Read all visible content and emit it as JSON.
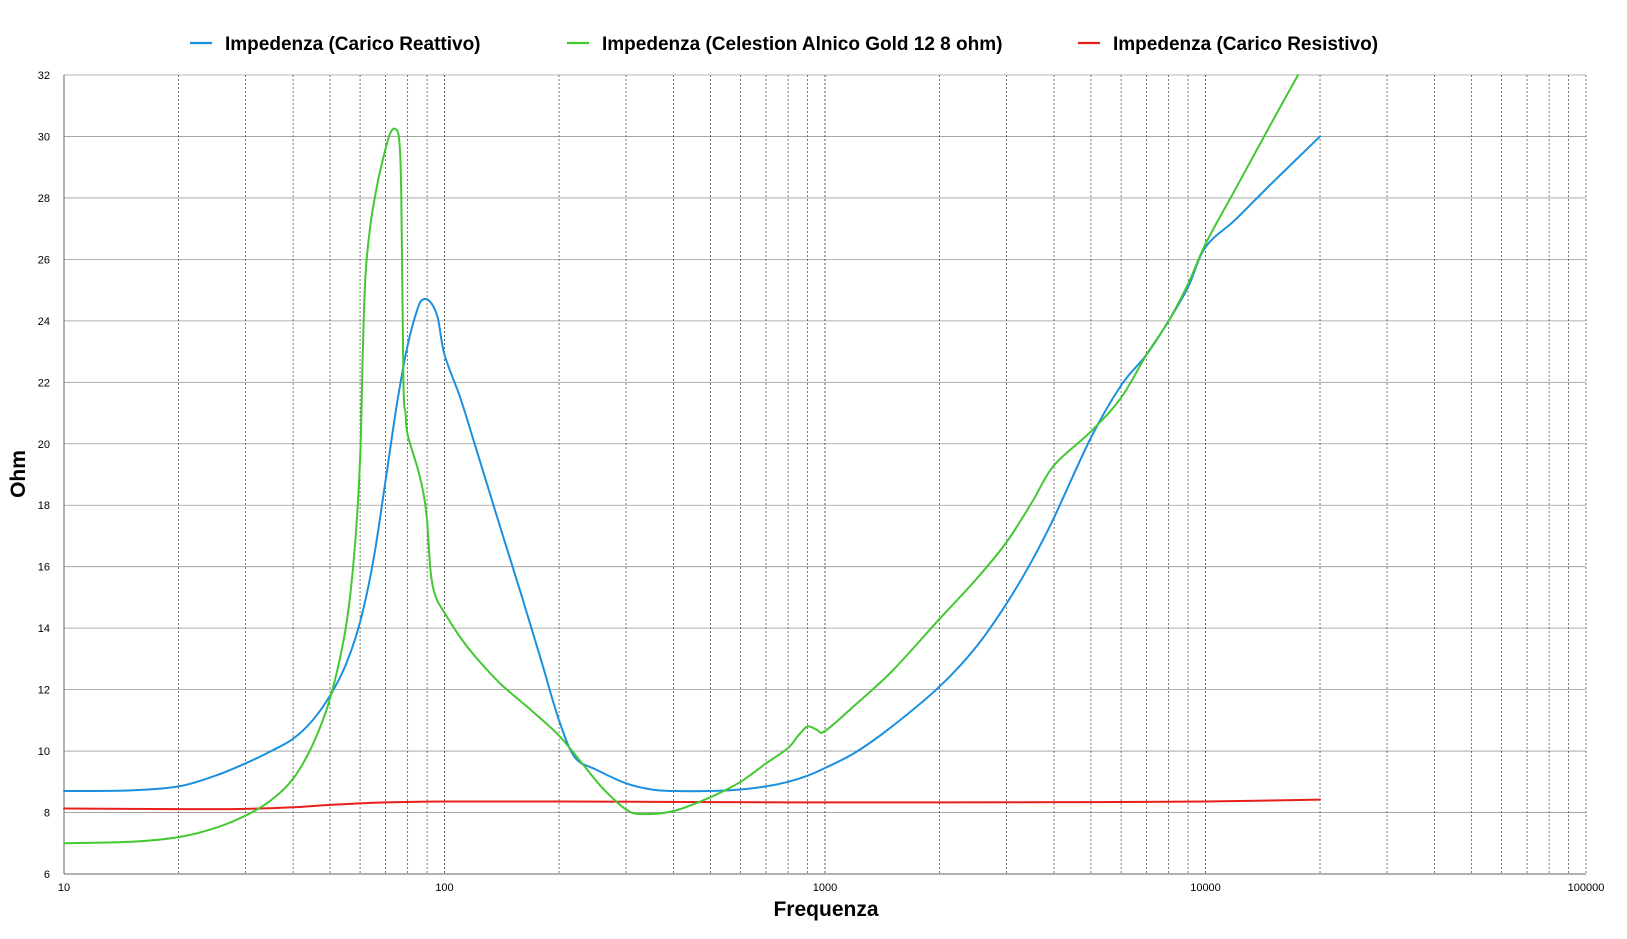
{
  "chart_data": {
    "type": "line",
    "xlabel": "Frequenza",
    "ylabel": "Ohm",
    "xscale": "log",
    "xlim": [
      10,
      100000
    ],
    "ylim": [
      6,
      32
    ],
    "x_tick_labels": [
      "10",
      "100",
      "1000",
      "10000",
      "100000"
    ],
    "y_tick_labels": [
      "6",
      "8",
      "10",
      "12",
      "14",
      "16",
      "18",
      "20",
      "22",
      "24",
      "26",
      "28",
      "30",
      "32"
    ],
    "grid": true,
    "legend_position": "top",
    "series": [
      {
        "name": "Impedenza (Carico Reattivo)",
        "color": "#1b8fe0",
        "points": [
          [
            10,
            8.7
          ],
          [
            15,
            8.72
          ],
          [
            20,
            8.85
          ],
          [
            25,
            9.2
          ],
          [
            30,
            9.6
          ],
          [
            35,
            10.0
          ],
          [
            40,
            10.4
          ],
          [
            45,
            11.0
          ],
          [
            50,
            11.8
          ],
          [
            55,
            12.8
          ],
          [
            60,
            14.2
          ],
          [
            65,
            16.2
          ],
          [
            70,
            18.8
          ],
          [
            75,
            21.3
          ],
          [
            80,
            23.2
          ],
          [
            85,
            24.4
          ],
          [
            88,
            24.7
          ],
          [
            92,
            24.6
          ],
          [
            96,
            24.1
          ],
          [
            100,
            22.9
          ],
          [
            110,
            21.5
          ],
          [
            120,
            20.0
          ],
          [
            140,
            17.3
          ],
          [
            160,
            15.0
          ],
          [
            180,
            12.9
          ],
          [
            200,
            11.0
          ],
          [
            220,
            9.8
          ],
          [
            250,
            9.4
          ],
          [
            300,
            8.95
          ],
          [
            350,
            8.75
          ],
          [
            400,
            8.7
          ],
          [
            500,
            8.7
          ],
          [
            600,
            8.75
          ],
          [
            700,
            8.85
          ],
          [
            800,
            9.0
          ],
          [
            900,
            9.2
          ],
          [
            1000,
            9.45
          ],
          [
            1200,
            9.95
          ],
          [
            1500,
            10.8
          ],
          [
            2000,
            12.1
          ],
          [
            2500,
            13.4
          ],
          [
            3000,
            14.8
          ],
          [
            3500,
            16.2
          ],
          [
            4000,
            17.6
          ],
          [
            5000,
            20.2
          ],
          [
            6000,
            21.9
          ],
          [
            7000,
            22.9
          ],
          [
            8000,
            24.0
          ],
          [
            9000,
            25.1
          ],
          [
            10000,
            26.4
          ],
          [
            12000,
            27.3
          ],
          [
            15000,
            28.5
          ],
          [
            20000,
            30.0
          ]
        ]
      },
      {
        "name": "Impedenza (Celestion Alnico Gold 12  8 ohm)",
        "color": "#43c832",
        "points": [
          [
            10,
            7.0
          ],
          [
            15,
            7.05
          ],
          [
            20,
            7.2
          ],
          [
            25,
            7.5
          ],
          [
            30,
            7.9
          ],
          [
            35,
            8.4
          ],
          [
            40,
            9.1
          ],
          [
            45,
            10.2
          ],
          [
            50,
            11.7
          ],
          [
            55,
            14.0
          ],
          [
            58,
            16.5
          ],
          [
            60,
            19.5
          ],
          [
            61,
            23.0
          ],
          [
            62,
            25.5
          ],
          [
            64,
            27.2
          ],
          [
            67,
            28.6
          ],
          [
            70,
            29.6
          ],
          [
            72,
            30.1
          ],
          [
            74,
            30.25
          ],
          [
            76,
            29.9
          ],
          [
            77,
            28.0
          ],
          [
            78,
            22.0
          ],
          [
            79,
            21.0
          ],
          [
            80,
            20.3
          ],
          [
            85,
            19.2
          ],
          [
            88,
            18.4
          ],
          [
            90,
            17.5
          ],
          [
            92,
            15.8
          ],
          [
            95,
            15.0
          ],
          [
            100,
            14.5
          ],
          [
            110,
            13.7
          ],
          [
            120,
            13.1
          ],
          [
            140,
            12.2
          ],
          [
            170,
            11.3
          ],
          [
            200,
            10.5
          ],
          [
            230,
            9.6
          ],
          [
            260,
            8.8
          ],
          [
            300,
            8.1
          ],
          [
            330,
            7.95
          ],
          [
            400,
            8.05
          ],
          [
            500,
            8.5
          ],
          [
            600,
            9.0
          ],
          [
            700,
            9.6
          ],
          [
            800,
            10.1
          ],
          [
            850,
            10.5
          ],
          [
            900,
            10.8
          ],
          [
            950,
            10.7
          ],
          [
            1000,
            10.65
          ],
          [
            1200,
            11.5
          ],
          [
            1500,
            12.6
          ],
          [
            2000,
            14.3
          ],
          [
            2500,
            15.6
          ],
          [
            3000,
            16.8
          ],
          [
            3500,
            18.1
          ],
          [
            4000,
            19.3
          ],
          [
            5000,
            20.4
          ],
          [
            6000,
            21.5
          ],
          [
            7000,
            22.9
          ],
          [
            8000,
            24.0
          ],
          [
            9000,
            25.2
          ],
          [
            10000,
            26.5
          ],
          [
            12000,
            28.3
          ],
          [
            15000,
            30.5
          ],
          [
            17500,
            32.0
          ]
        ]
      },
      {
        "name": "Impedenza (Carico Resistivo)",
        "color": "#e8201c",
        "points": [
          [
            10,
            8.13
          ],
          [
            20,
            8.11
          ],
          [
            30,
            8.12
          ],
          [
            40,
            8.17
          ],
          [
            50,
            8.25
          ],
          [
            70,
            8.33
          ],
          [
            100,
            8.36
          ],
          [
            200,
            8.36
          ],
          [
            500,
            8.34
          ],
          [
            1000,
            8.33
          ],
          [
            2000,
            8.33
          ],
          [
            5000,
            8.34
          ],
          [
            10000,
            8.36
          ],
          [
            20000,
            8.42
          ]
        ]
      }
    ]
  }
}
